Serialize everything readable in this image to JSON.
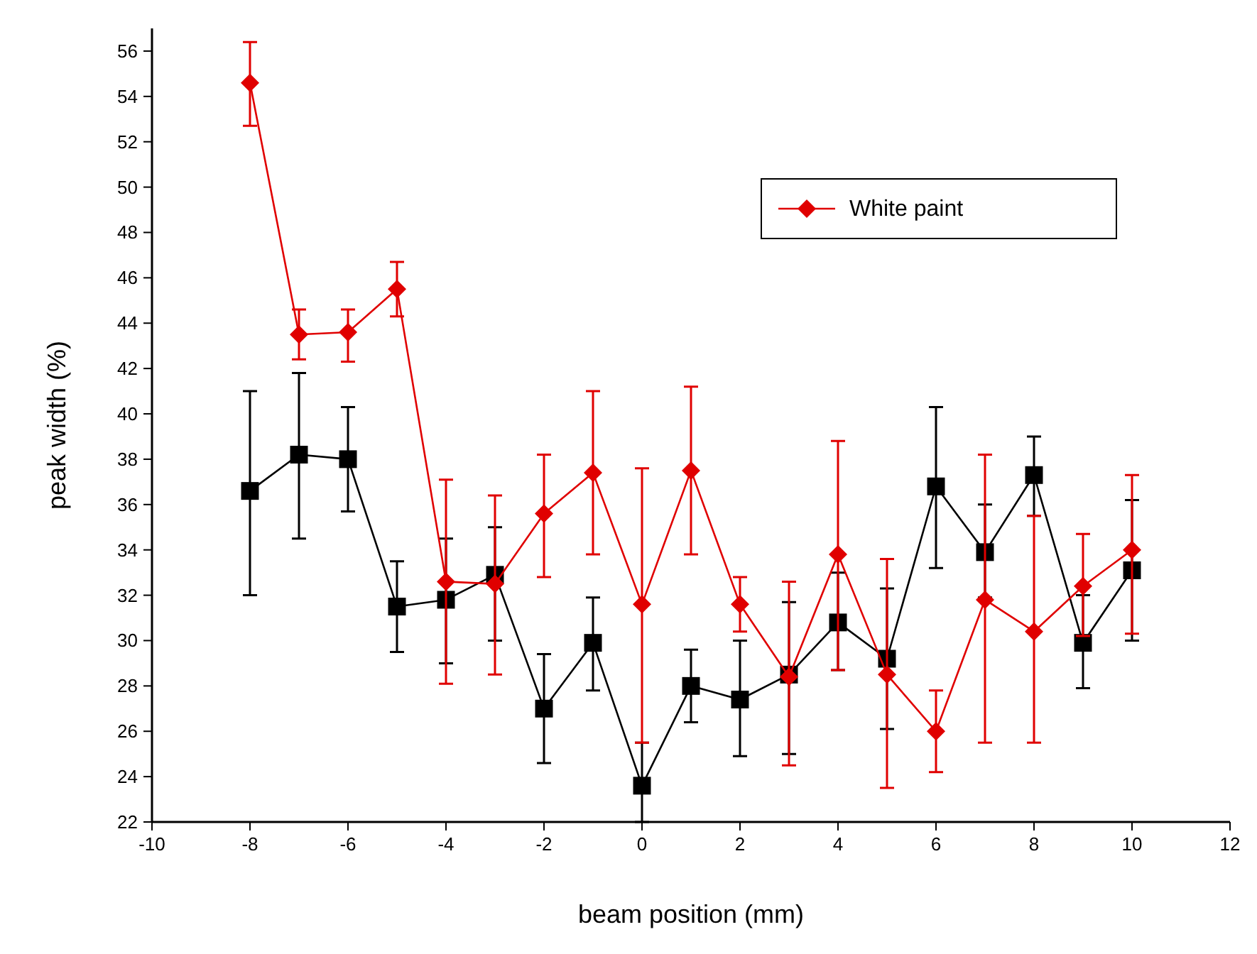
{
  "chart_data": {
    "type": "line",
    "xlabel": "beam position (mm)",
    "ylabel": "peak width (%)",
    "x": [
      -8,
      -7,
      -6,
      -5,
      -4,
      -3,
      -2,
      -1,
      0,
      1,
      2,
      3,
      4,
      5,
      6,
      7,
      8,
      9,
      10
    ],
    "xlim": [
      -10,
      12
    ],
    "xticks": [
      -10,
      -8,
      -6,
      -4,
      -2,
      0,
      2,
      4,
      6,
      8,
      10,
      12
    ],
    "ylim": [
      22,
      57
    ],
    "yticks": [
      22,
      24,
      26,
      28,
      30,
      32,
      34,
      36,
      38,
      40,
      42,
      44,
      46,
      48,
      50,
      52,
      54,
      56
    ],
    "legend": "top right",
    "grid": false,
    "series": [
      {
        "color": "#000000",
        "marker": "square",
        "values": [
          36.6,
          38.2,
          38.0,
          31.5,
          31.8,
          32.9,
          27.0,
          29.9,
          23.6,
          28.0,
          27.4,
          28.5,
          30.8,
          29.2,
          36.8,
          33.9,
          37.3,
          29.9,
          33.1
        ],
        "errors": [
          [
            32,
            41
          ],
          [
            34.5,
            41.8
          ],
          [
            35.7,
            40.3
          ],
          [
            29.5,
            33.5
          ],
          [
            29,
            34.5
          ],
          [
            30,
            35
          ],
          [
            24.6,
            29.4
          ],
          [
            27.8,
            31.9
          ],
          [
            22,
            25.5
          ],
          [
            26.4,
            29.6
          ],
          [
            24.9,
            30
          ],
          [
            25,
            31.7
          ],
          [
            28.7,
            33
          ],
          [
            26.1,
            32.3
          ],
          [
            33.2,
            40.3
          ],
          [
            31.9,
            36
          ],
          [
            35.5,
            39
          ],
          [
            27.9,
            32
          ],
          [
            30,
            36.2
          ]
        ]
      },
      {
        "name": "White paint",
        "color": "#e00000",
        "marker": "diamond",
        "values": [
          54.6,
          43.5,
          43.6,
          45.5,
          32.6,
          32.5,
          35.6,
          37.4,
          31.6,
          37.5,
          31.6,
          28.4,
          33.8,
          28.5,
          26.0,
          31.8,
          30.4,
          32.4,
          34.0
        ],
        "errors": [
          [
            52.7,
            56.4
          ],
          [
            42.4,
            44.6
          ],
          [
            42.3,
            44.6
          ],
          [
            44.3,
            46.7
          ],
          [
            28.1,
            37.1
          ],
          [
            28.5,
            36.4
          ],
          [
            32.8,
            38.2
          ],
          [
            33.8,
            41
          ],
          [
            25.5,
            37.6
          ],
          [
            33.8,
            41.2
          ],
          [
            30.4,
            32.8
          ],
          [
            24.5,
            32.6
          ],
          [
            28.7,
            38.8
          ],
          [
            23.5,
            33.6
          ],
          [
            24.2,
            27.8
          ],
          [
            25.5,
            38.2
          ],
          [
            25.5,
            35.5
          ],
          [
            30.2,
            34.7
          ],
          [
            30.3,
            37.3
          ]
        ]
      }
    ]
  }
}
